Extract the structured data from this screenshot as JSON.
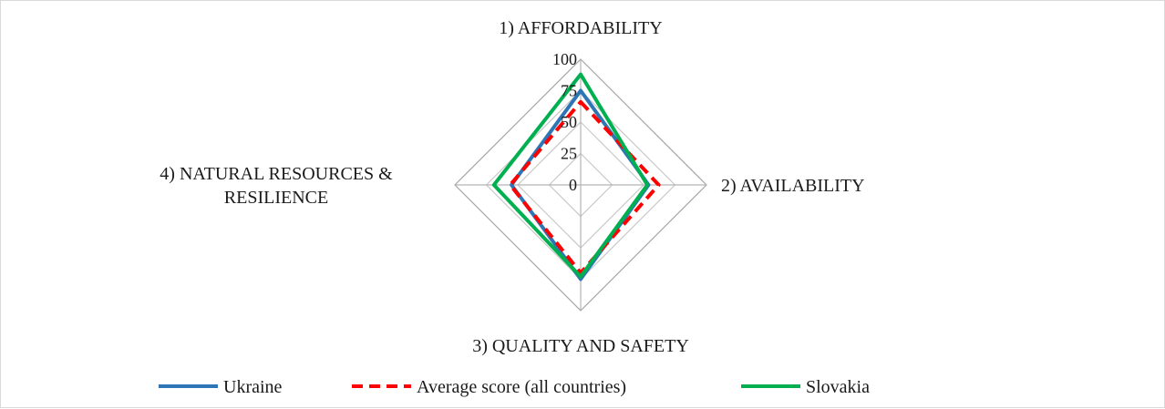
{
  "chart_data": {
    "type": "radar",
    "axes": [
      {
        "label_lines": [
          "1) AFFORDABILITY"
        ]
      },
      {
        "label_lines": [
          "2) AVAILABILITY"
        ]
      },
      {
        "label_lines": [
          "3) QUALITY AND SAFETY"
        ]
      },
      {
        "label_lines": [
          "4) NATURAL RESOURCES &",
          "RESILIENCE"
        ]
      }
    ],
    "rlim": [
      0,
      100
    ],
    "ticks": [
      0,
      25,
      50,
      75,
      100
    ],
    "tick_labels": [
      "0",
      "25",
      "50",
      "75",
      "100"
    ],
    "grid": true,
    "legend_position": "bottom",
    "series": [
      {
        "name": "Ukraine",
        "values": [
          75,
          54,
          75,
          55
        ],
        "color": "#2e75b6",
        "dash": "solid"
      },
      {
        "name": "Average score (all countries)",
        "values": [
          66,
          62,
          70,
          56
        ],
        "color": "#ff0000",
        "dash": "dashed"
      },
      {
        "name": "Slovakia",
        "values": [
          88,
          53,
          73,
          69
        ],
        "color": "#00b050",
        "dash": "solid"
      }
    ]
  }
}
